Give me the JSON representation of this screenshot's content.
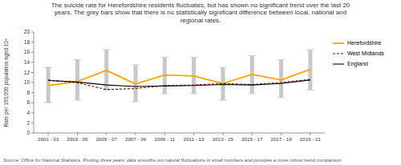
{
  "chart_data": {
    "type": "line",
    "title": "The suicide rate for Herefordshire residents fluctuates, but has shown no significant trend over the last 20\nyears. The grey bars show that there is no statistically significant difference between local, national and\nregional rates.",
    "annotations": [
      "Source: Office for National Statistics.  Pooling three years' data smooths out natural fluctuations in small numbers and provides a more robust trend comparison"
    ],
    "ylabel": "Rate per 100,000 population aged 10+",
    "ylim": [
      0,
      20
    ],
    "yticks": [
      0,
      2,
      4,
      6,
      8,
      10,
      12,
      14,
      16,
      18,
      20
    ],
    "categories": [
      "2001 - 03",
      "2003 - 05",
      "2005 - 07",
      "2007 - 09",
      "2009 - 11",
      "2011 - 13",
      "2013 - 15",
      "2015 - 17",
      "2017 - 19",
      "2019 - 21"
    ],
    "series": [
      {
        "name": "Herefordshire",
        "color": "#FFA500",
        "line_style": "solid",
        "values": [
          9.4,
          10.2,
          12.4,
          9.7,
          11.5,
          11.3,
          9.8,
          11.6,
          10.5,
          12.6
        ],
        "lower": [
          6.0,
          6.5,
          8.5,
          6.2,
          7.8,
          7.8,
          6.5,
          7.8,
          7.0,
          8.5
        ],
        "upper": [
          13.0,
          14.5,
          16.5,
          13.5,
          15.0,
          15.0,
          13.0,
          15.3,
          14.5,
          16.5
        ]
      },
      {
        "name": "West Midlands",
        "color": "#8B0000",
        "line_style": "dashed",
        "values": [
          10.5,
          9.95,
          8.6,
          8.8,
          9.4,
          9.5,
          9.8,
          9.6,
          10.0,
          10.6
        ]
      },
      {
        "name": "England",
        "color": "#000000",
        "line_style": "solid",
        "values": [
          10.4,
          10.1,
          9.5,
          9.2,
          9.3,
          9.4,
          9.6,
          9.5,
          9.8,
          10.5
        ]
      }
    ],
    "grid": false,
    "legend": "right"
  }
}
